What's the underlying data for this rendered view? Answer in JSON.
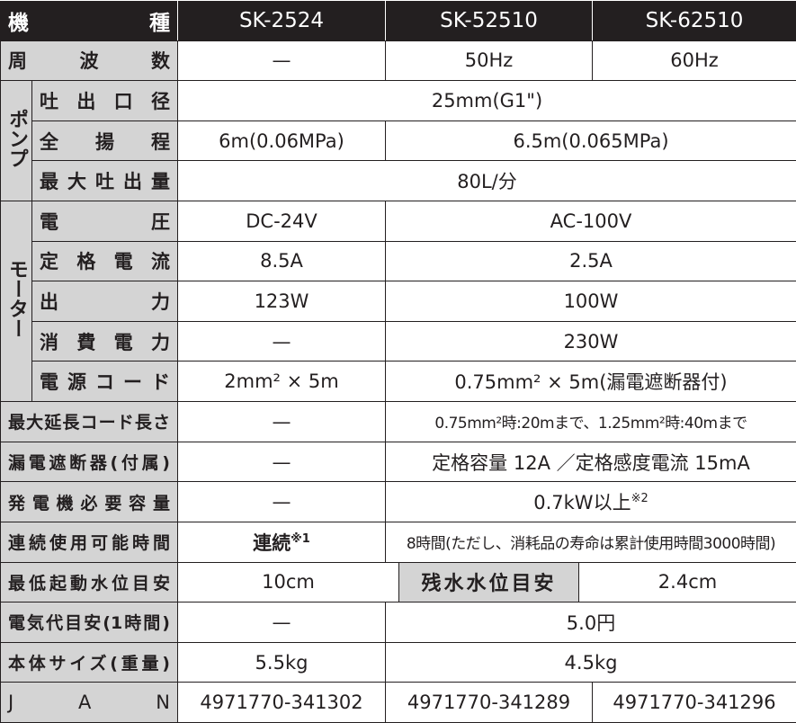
{
  "header": {
    "label": "機　　種",
    "models": [
      "SK-2524",
      "SK-52510",
      "SK-62510"
    ]
  },
  "groups": {
    "pump": "ポンプ",
    "motor": "モーター"
  },
  "rows": {
    "frequency": {
      "label": "周 波 数",
      "v1": "—",
      "v2": "50Hz",
      "v3": "60Hz"
    },
    "outlet": {
      "label": "吐出口径",
      "v": "25mm(G1\")"
    },
    "head": {
      "label": "全 揚 程",
      "v1": "6m(0.06MPa)",
      "v2": "6.5m(0.065MPa)"
    },
    "max_flow": {
      "label": "最大吐出量",
      "v": "80L/分"
    },
    "voltage": {
      "label": "電 圧",
      "v1": "DC-24V",
      "v2": "AC-100V"
    },
    "rated_current": {
      "label": "定格電流",
      "v1": "8.5A",
      "v2": "2.5A"
    },
    "output": {
      "label": "出 力",
      "v1": "123W",
      "v2": "100W"
    },
    "power_consumption": {
      "label": "消費電力",
      "v1": "—",
      "v2": "230W"
    },
    "power_cord": {
      "label": "電源コード",
      "v1": "2mm² × 5m",
      "v2": "0.75mm² × 5m(漏電遮断器付)"
    },
    "max_extension": {
      "label": "最大延長コード長さ",
      "v1": "—",
      "v2": "0.75mm²時:20mまで、1.25mm²時:40mまで"
    },
    "breaker": {
      "label": "漏電遮断器(付属)",
      "v1": "—",
      "v2": "定格容量 12A ／定格感度電流 15mA"
    },
    "generator": {
      "label": "発電機必要容量",
      "v1": "—",
      "v2": "0.7kW以上",
      "v2_note": "※2"
    },
    "continuous": {
      "label": "連続使用可能時間",
      "v1": "連続",
      "v1_note": "※1",
      "v2": "8時間(ただし、消耗品の寿命は累計使用時間3000時間)"
    },
    "min_start_level": {
      "label": "最低起動水位目安",
      "v1": "10cm",
      "sub_label": "残水水位目安",
      "v2": "2.4cm"
    },
    "electricity_cost": {
      "label": "電気代目安(1時間)",
      "v1": "—",
      "v2": "5.0円"
    },
    "weight": {
      "label": "本体サイズ(重量)",
      "v1": "5.5kg",
      "v2": "4.5kg"
    },
    "jan": {
      "label": "J A N",
      "v1": "4971770-341302",
      "v2": "4971770-341289",
      "v3": "4971770-341296"
    }
  }
}
